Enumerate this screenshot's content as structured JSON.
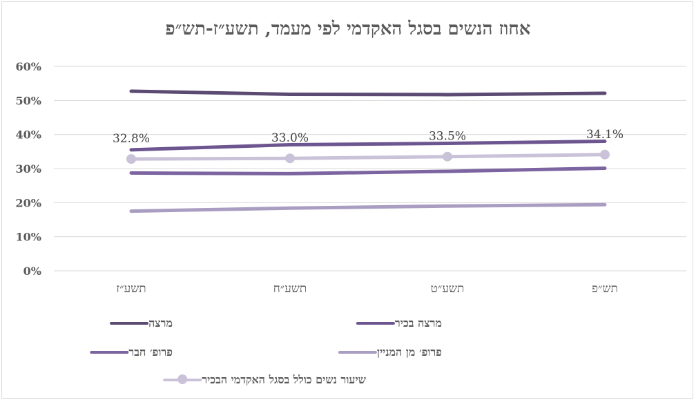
{
  "chart_data": {
    "type": "line",
    "title": "אחוז הנשים בסגל האקדמי לפי מעמד, תשע״ז-תש״פ",
    "categories": [
      "תשע״ז",
      "תשע״ח",
      "תשע״ט",
      "תש״פ"
    ],
    "ylim": [
      0,
      60
    ],
    "yticks": [
      "0%",
      "10%",
      "20%",
      "30%",
      "40%",
      "50%",
      "60%"
    ],
    "grid": true,
    "legend_position": "bottom",
    "series": [
      {
        "name": "מרצה",
        "values": [
          52.7,
          51.8,
          51.7,
          52.1
        ],
        "color": "#5b4a72",
        "markers": false
      },
      {
        "name": "מרצה בכיר",
        "values": [
          35.5,
          37.0,
          37.4,
          38.0
        ],
        "color": "#6d5690",
        "markers": false
      },
      {
        "name": "פרופ׳ חבר",
        "values": [
          28.7,
          28.5,
          29.2,
          30.1
        ],
        "color": "#7b64a0",
        "markers": false
      },
      {
        "name": "פרופ׳ מן המניין",
        "values": [
          17.5,
          18.4,
          19.0,
          19.4
        ],
        "color": "#a99ec1",
        "markers": false
      },
      {
        "name": "שיעור נשים כולל בסגל האקדמי הבכיר",
        "values": [
          32.8,
          33.0,
          33.5,
          34.1
        ],
        "color": "#c9c2d8",
        "markers": true,
        "data_labels": [
          "32.8%",
          "33.0%",
          "33.5%",
          "34.1%"
        ]
      }
    ]
  }
}
